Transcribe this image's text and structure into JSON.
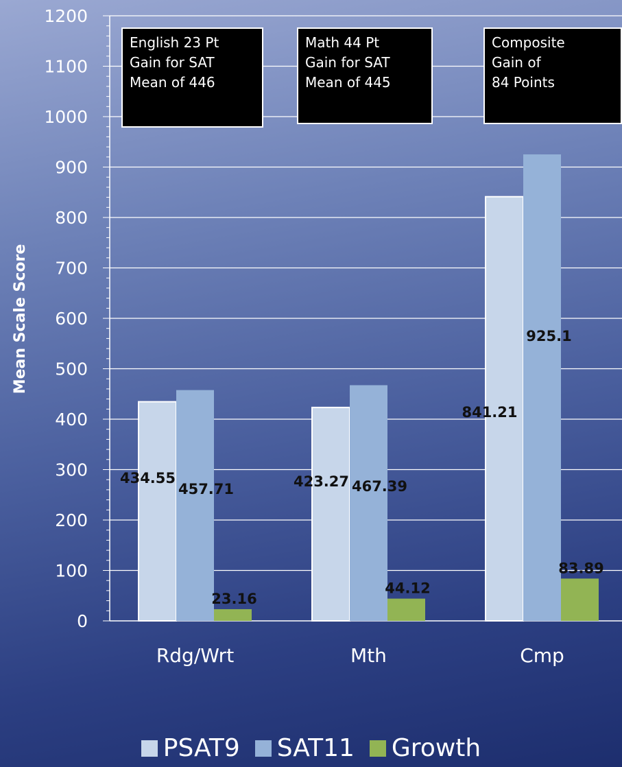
{
  "chart_data": {
    "type": "bar",
    "title": "",
    "xlabel": "",
    "ylabel": "Mean Scale Score",
    "ylim": [
      0,
      1200
    ],
    "yticks": [
      0,
      100,
      200,
      300,
      400,
      500,
      600,
      700,
      800,
      900,
      1000,
      1100,
      1200
    ],
    "grid": true,
    "legend_position": "bottom",
    "categories": [
      "Rdg/Wrt",
      "Mth",
      "Cmp"
    ],
    "series": [
      {
        "name": "PSAT9",
        "color": "#c7d6ea",
        "values": [
          434.55,
          423.27,
          841.21
        ],
        "labels": [
          "434.55",
          "423.27",
          "841.21"
        ]
      },
      {
        "name": "SAT11",
        "color": "#95b2d8",
        "values": [
          457.71,
          467.39,
          925.1
        ],
        "labels": [
          "457.71",
          "467.39",
          "925.1"
        ]
      },
      {
        "name": "Growth",
        "color": "#92b454",
        "values": [
          23.16,
          44.12,
          83.89
        ],
        "labels": [
          "23.16",
          "44.12",
          "83.89"
        ]
      }
    ],
    "annotations": [
      "English 23 Pt\nGain for SAT\nMean of 446",
      "Math 44 Pt\nGain for SAT\nMean of 445",
      "Composite\nGain of\n84 Points"
    ]
  }
}
